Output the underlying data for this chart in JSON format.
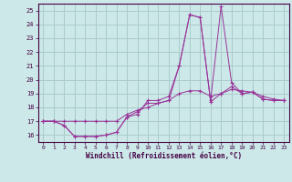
{
  "xlabel": "Windchill (Refroidissement éolien,°C)",
  "bg_color": "#cce8e8",
  "grid_color": "#aacccc",
  "line_color": "#993399",
  "xlim": [
    -0.5,
    23.5
  ],
  "ylim": [
    15.5,
    25.5
  ],
  "yticks": [
    16,
    17,
    18,
    19,
    20,
    21,
    22,
    23,
    24,
    25
  ],
  "xticks": [
    0,
    1,
    2,
    3,
    4,
    5,
    6,
    7,
    8,
    9,
    10,
    11,
    12,
    13,
    14,
    15,
    16,
    17,
    18,
    19,
    20,
    21,
    22,
    23
  ],
  "series": [
    [
      17.0,
      17.0,
      16.7,
      15.9,
      15.9,
      15.9,
      16.0,
      16.2,
      17.3,
      17.5,
      18.5,
      18.5,
      18.8,
      21.0,
      24.7,
      24.5,
      18.4,
      19.0,
      19.5,
      19.0,
      19.1,
      18.6,
      18.5,
      18.5
    ],
    [
      17.0,
      17.0,
      16.7,
      15.9,
      15.9,
      15.9,
      16.0,
      16.2,
      17.3,
      17.7,
      18.3,
      18.3,
      18.5,
      21.0,
      24.7,
      24.5,
      18.5,
      25.3,
      19.8,
      19.0,
      19.1,
      18.6,
      18.5,
      18.5
    ],
    [
      17.0,
      17.0,
      17.0,
      17.0,
      17.0,
      17.0,
      17.0,
      17.0,
      17.5,
      17.8,
      18.0,
      18.3,
      18.5,
      19.0,
      19.2,
      19.2,
      18.8,
      19.0,
      19.3,
      19.2,
      19.1,
      18.8,
      18.6,
      18.5
    ]
  ]
}
